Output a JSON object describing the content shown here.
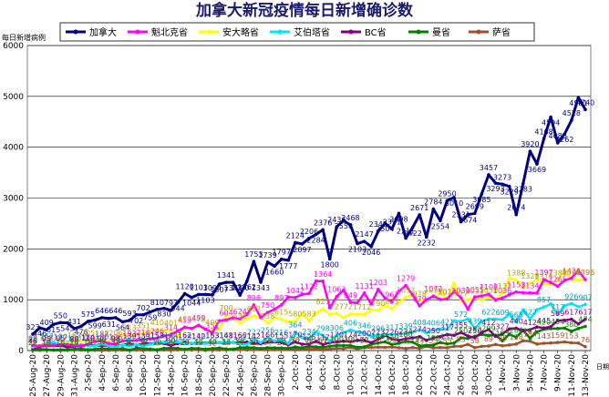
{
  "chart_data": {
    "type": "line",
    "title": "加拿大新冠疫情每日新增确诊数",
    "ylabel": "每日新增病例",
    "xlabel_unit": "日期",
    "ylim": [
      0,
      6000
    ],
    "yticks": [
      "0",
      "1000",
      "2000",
      "3000",
      "4000",
      "5000",
      "6000"
    ],
    "grid": true,
    "legend_position": "top",
    "x": [
      "25-Aug",
      "26-Aug",
      "27-Aug",
      "28-Aug",
      "29-Aug",
      "30-Aug",
      "31-Aug",
      "1-Sep",
      "2-Sep",
      "3-Sep",
      "4-Sep",
      "5-Sep",
      "6-Sep",
      "7-Sep",
      "8-Sep",
      "9-Sep",
      "10-Sep",
      "11-Sep",
      "12-Sep",
      "13-Sep",
      "14-Sep",
      "15-Sep",
      "16-Sep",
      "17-Sep",
      "18-Sep",
      "19-Sep",
      "20-Sep",
      "21-Sep",
      "22-Sep",
      "23-Sep",
      "24-Sep",
      "25-Sep",
      "26-Sep",
      "27-Sep",
      "28-Sep",
      "29-Sep",
      "30-Sep",
      "1-Oct",
      "2-Oct",
      "3-Oct",
      "4-Oct",
      "5-Oct",
      "6-Oct",
      "7-Oct",
      "8-Oct",
      "9-Oct",
      "10-Oct",
      "11-Oct",
      "12-Oct",
      "13-Oct",
      "14-Oct",
      "15-Oct",
      "16-Oct",
      "17-Oct",
      "18-Oct",
      "19-Oct",
      "20-Oct",
      "21-Oct",
      "22-Oct",
      "23-Oct",
      "24-Oct",
      "25-Oct",
      "26-Oct",
      "27-Oct",
      "28-Oct",
      "29-Oct",
      "30-Oct",
      "31-Oct",
      "1-Nov",
      "2-Nov",
      "3-Nov",
      "4-Nov",
      "5-Nov",
      "6-Nov",
      "7-Nov",
      "8-Nov",
      "9-Nov",
      "10-Nov",
      "11-Nov",
      "12-Nov",
      "13-Nov"
    ],
    "xtick_labels": [
      "25-Aug-20",
      "27-Aug-20",
      "29-Aug-20",
      "31-Aug-20",
      "2-Sep-20",
      "4-Sep-20",
      "6-Sep-20",
      "8-Sep-20",
      "10-Sep-20",
      "12-Sep-20",
      "14-Sep-20",
      "16-Sep-20",
      "18-Sep-20",
      "20-Sep-20",
      "22-Sep-20",
      "24-Sep-20",
      "26-Sep-20",
      "28-Sep-20",
      "30-Sep-20",
      "2-Oct-20",
      "4-Oct-20",
      "6-Oct-20",
      "8-Oct-20",
      "10-Oct-20",
      "12-Oct-20",
      "14-Oct-20",
      "16-Oct-20",
      "18-Oct-20",
      "20-Oct-20",
      "22-Oct-20",
      "24-Oct-20",
      "26-Oct-20",
      "28-Oct-20",
      "30-Oct-20",
      "1-Nov-20",
      "3-Nov-20",
      "5-Nov-20",
      "7-Nov-20",
      "9-Nov-20",
      "11-Nov-20",
      "13-Nov-20"
    ],
    "series": [
      {
        "name": "加拿大",
        "color": "#000080",
        "width": 3,
        "labels": true,
        "values": [
          323,
          446,
          409,
          515,
          550,
          545,
          431,
          476,
          575,
          599,
          646,
          631,
          646,
          564,
          593,
          702,
          702,
          759,
          810,
          830,
          793,
          944,
          1120,
          1044,
          1103,
          1103,
          1094,
          1307,
          1341,
          1341,
          1090,
          1362,
          1753,
          1343,
          1739,
          1660,
          1797,
          1777,
          2124,
          2097,
          2206,
          2284,
          2376,
          1800,
          2436,
          2558,
          2468,
          2103,
          2147,
          2046,
          2345,
          2504,
          2391,
          2698,
          2211,
          2422,
          2671,
          2232,
          2784,
          2554,
          2950,
          3010,
          2531,
          2674,
          2699,
          3085,
          3457,
          3293,
          3273,
          3229,
          2674,
          3283,
          3920,
          3669,
          4168,
          4594,
          4086,
          4262,
          4528,
          4981,
          4740
        ]
      },
      {
        "name": "魁北克省",
        "color": "#ff00ff",
        "width": 2.5,
        "labels": true,
        "values": [
          98,
          92,
          107,
          111,
          117,
          121,
          88,
          96,
          124,
          180,
          187,
          140,
          126,
          193,
          193,
          200,
          216,
          228,
          246,
          290,
          314,
          386,
          459,
          436,
          499,
          420,
          351,
          586,
          604,
          645,
          624,
          709,
          896,
          650,
          750,
          814,
          897,
          1052,
          1042,
          1106,
          1122,
          1369,
          1364,
          841,
          1062,
          1191,
          949,
          938,
          1131,
          917,
          1203,
          1033,
          961,
          1167,
          1279,
          1094,
          879,
          1000,
          1072,
          1005,
          1013,
          1160,
          1039,
          815,
          1055,
          1072,
          1108,
          997,
          1036,
          1100,
          1153,
          1138,
          1134,
          1132,
          1397,
          1338,
          1265,
          1378,
          1426,
          1575,
          1396
        ]
      },
      {
        "name": "安大略省",
        "color": "#ffff00",
        "width": 2.5,
        "labels": true,
        "values": [
          88,
          101,
          108,
          110,
          130,
          149,
          163,
          185,
          205,
          226,
          178,
          190,
          206,
          313,
          313,
          315,
          351,
          380,
          410,
          382,
          401,
          291,
          477,
          425,
          478,
          409,
          409,
          425,
          700,
          625,
          538,
          625,
          683,
          651,
          538,
          653,
          615,
          565,
          580,
          732,
          583,
          737,
          821,
          712,
          727,
          649,
          721,
          712,
          712,
          805,
          790,
          895,
          823,
          940,
          1052,
          1097,
          978,
          1015,
          1050,
          1138,
          1015,
          1328,
          977,
          998,
          1031,
          997,
          1050,
          1003,
          1132,
          1426,
          1388,
          1242,
          1328,
          1388,
          1315,
          1301,
          1388,
          1575,
          1396,
          1388,
          1396
        ]
      },
      {
        "name": "艾伯塔省",
        "color": "#00e5ff",
        "width": 2.5,
        "labels": true,
        "values": [
          70,
          96,
          147,
          164,
          117,
          164,
          100,
          113,
          98,
          91,
          130,
          99,
          84,
          109,
          90,
          115,
          85,
          124,
          158,
          164,
          164,
          173,
          128,
          146,
          130,
          142,
          163,
          159,
          161,
          162,
          121,
          121,
          222,
          159,
          256,
          188,
          216,
          144,
          364,
          257,
          234,
          361,
          298,
          186,
          306,
          357,
          406,
          364,
          346,
          277,
          296,
          321,
          317,
          322,
          339,
          363,
          408,
          351,
          406,
          420,
          421,
          589,
          572,
          622,
          439,
          576,
          622,
          620,
          609,
          714,
          565,
          802,
          622,
          802,
          857,
          919,
          713,
          881,
          926,
          860,
          907
        ]
      },
      {
        "name": "BC省",
        "color": "#800080",
        "width": 2.5,
        "labels": true,
        "values": [
          46,
          80,
          93,
          96,
          95,
          72,
          80,
          84,
          110,
          100,
          96,
          98,
          98,
          106,
          139,
          98,
          139,
          139,
          153,
          139,
          100,
          139,
          162,
          139,
          142,
          152,
          153,
          158,
          148,
          160,
          160,
          166,
          142,
          134,
          166,
          170,
          155,
          113,
          170,
          125,
          125,
          180,
          117,
          158,
          170,
          183,
          174,
          200,
          200,
          156,
          223,
          300,
          226,
          200,
          234,
          248,
          274,
          200,
          250,
          272,
          317,
          300,
          355,
          287,
          250,
          355,
          412,
          280,
          327,
          425,
          440,
          389,
          412,
          464,
          445,
          470,
          589,
          594,
          617,
          525,
          617
        ]
      },
      {
        "name": "曼省",
        "color": "#008000",
        "width": 2.5,
        "labels": true,
        "values": [
          22,
          29,
          19,
          13,
          18,
          20,
          26,
          33,
          18,
          27,
          37,
          36,
          35,
          40,
          10,
          49,
          39,
          30,
          18,
          43,
          50,
          44,
          20,
          44,
          40,
          29,
          40,
          50,
          33,
          28,
          58,
          61,
          56,
          40,
          56,
          53,
          50,
          45,
          70,
          56,
          82,
          72,
          67,
          86,
          100,
          98,
          100,
          65,
          72,
          124,
          146,
          172,
          119,
          144,
          180,
          165,
          91,
          103,
          108,
          159,
          131,
          147,
          250,
          239,
          282,
          317,
          299,
          302,
          193,
          319,
          264,
          400,
          242,
          366,
          420,
          431,
          434,
          441,
          380,
          434,
          474
        ]
      },
      {
        "name": "萨省",
        "color": "#a0522d",
        "width": 2.5,
        "labels": true,
        "values": [
          2,
          4,
          10,
          5,
          2,
          3,
          14,
          8,
          3,
          7,
          2,
          6,
          9,
          8,
          6,
          10,
          4,
          11,
          6,
          12,
          6,
          14,
          23,
          12,
          16,
          4,
          12,
          11,
          16,
          18,
          17,
          14,
          17,
          20,
          26,
          16,
          20,
          20,
          32,
          29,
          29,
          30,
          27,
          31,
          45,
          40,
          62,
          31,
          57,
          60,
          67,
          62,
          69,
          55,
          41,
          59,
          43,
          81,
          53,
          60,
          55,
          82,
          83,
          121,
          58,
          82,
          89,
          120,
          95,
          109,
          128,
          191,
          184,
          128,
          143,
          148,
          159,
          170,
          153,
          147,
          76
        ]
      }
    ],
    "end_labels": [
      "4981",
      "4740",
      "1575",
      "1426",
      "1396",
      "1388",
      "907",
      "617",
      "474",
      "434",
      "111",
      "76"
    ]
  }
}
